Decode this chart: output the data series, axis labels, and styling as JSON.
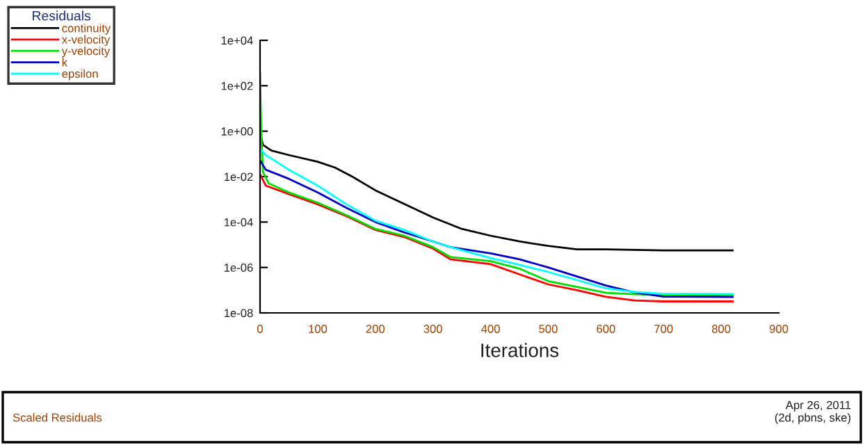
{
  "chart_data": {
    "type": "line",
    "xlabel": "Iterations",
    "legend_title": "Residuals",
    "legend": "top left",
    "log": "y",
    "grid": false,
    "marker": "none",
    "line_style": "solid",
    "xlim": [
      0,
      900
    ],
    "xticks": [
      0,
      100,
      200,
      300,
      400,
      500,
      600,
      700,
      800,
      900
    ],
    "ylim": [
      1e-08,
      10000
    ],
    "yticks": [
      {
        "value": 1e-08,
        "label": "1e-08"
      },
      {
        "value": 1e-06,
        "label": "1e-06"
      },
      {
        "value": 0.0001,
        "label": "1e-04"
      },
      {
        "value": 0.01,
        "label": "1e-02"
      },
      {
        "value": 1,
        "label": "1e+00"
      },
      {
        "value": 100,
        "label": "1e+02"
      },
      {
        "value": 10000,
        "label": "1e+04"
      }
    ],
    "series": [
      {
        "name": "continuity",
        "color": "#000000",
        "x": [
          0,
          5,
          20,
          50,
          100,
          130,
          160,
          200,
          250,
          300,
          350,
          400,
          450,
          500,
          550,
          600,
          700,
          820
        ],
        "values": [
          0.89,
          0.25,
          0.14,
          0.089,
          0.045,
          0.025,
          0.01,
          0.0025,
          0.00063,
          0.00016,
          5e-05,
          2.5e-05,
          1.4e-05,
          8.9e-06,
          6.3e-06,
          6.3e-06,
          5.6e-06,
          5.6e-06
        ]
      },
      {
        "name": "x-velocity",
        "color": "#ff0000",
        "x": [
          0,
          10,
          50,
          100,
          150,
          200,
          250,
          300,
          330,
          400,
          450,
          500,
          550,
          600,
          650,
          700,
          820
        ],
        "values": [
          0.0126,
          0.004,
          0.0017,
          0.0006,
          0.00018,
          4.5e-05,
          2.2e-05,
          6.8e-06,
          2.3e-06,
          1.4e-06,
          5e-07,
          1.8e-07,
          1e-07,
          5.1e-08,
          3.5e-08,
          3.2e-08,
          3.2e-08
        ]
      },
      {
        "name": "y-velocity",
        "color": "#00e000",
        "x": [
          0,
          2,
          5,
          15,
          50,
          100,
          150,
          200,
          250,
          300,
          330,
          400,
          450,
          500,
          550,
          600,
          650,
          700,
          820
        ],
        "values": [
          400,
          1,
          0.016,
          0.005,
          0.002,
          0.00071,
          0.0002,
          5e-05,
          2.5e-05,
          7.9e-06,
          2.9e-06,
          1.9e-06,
          8.9e-07,
          2.5e-07,
          1.4e-07,
          7.6e-08,
          6.6e-08,
          6e-08,
          6e-08
        ]
      },
      {
        "name": "k",
        "color": "#0000c8",
        "x": [
          0,
          10,
          50,
          100,
          150,
          200,
          250,
          300,
          330,
          400,
          450,
          500,
          550,
          600,
          650,
          700,
          820
        ],
        "values": [
          0.052,
          0.02,
          0.008,
          0.002,
          0.00042,
          0.0001,
          3.5e-05,
          1.4e-05,
          7.9e-06,
          4.2e-06,
          2.3e-06,
          1e-06,
          4e-07,
          1.6e-07,
          7.9e-08,
          5.2e-08,
          5e-08
        ]
      },
      {
        "name": "epsilon",
        "color": "#00ffff",
        "x": [
          0,
          10,
          50,
          100,
          150,
          200,
          250,
          300,
          330,
          400,
          450,
          500,
          550,
          600,
          650,
          700,
          820
        ],
        "values": [
          0.17,
          0.089,
          0.02,
          0.004,
          0.0006,
          0.000115,
          4.5e-05,
          1.4e-05,
          7.9e-06,
          2.6e-06,
          1.3e-06,
          6.3e-07,
          2.8e-07,
          1.2e-07,
          8.3e-08,
          6.9e-08,
          6.8e-08
        ]
      }
    ],
    "annotations": [
      "Scaled Residuals",
      "Apr 26, 2011",
      "(2d, pbns, ske)"
    ]
  }
}
